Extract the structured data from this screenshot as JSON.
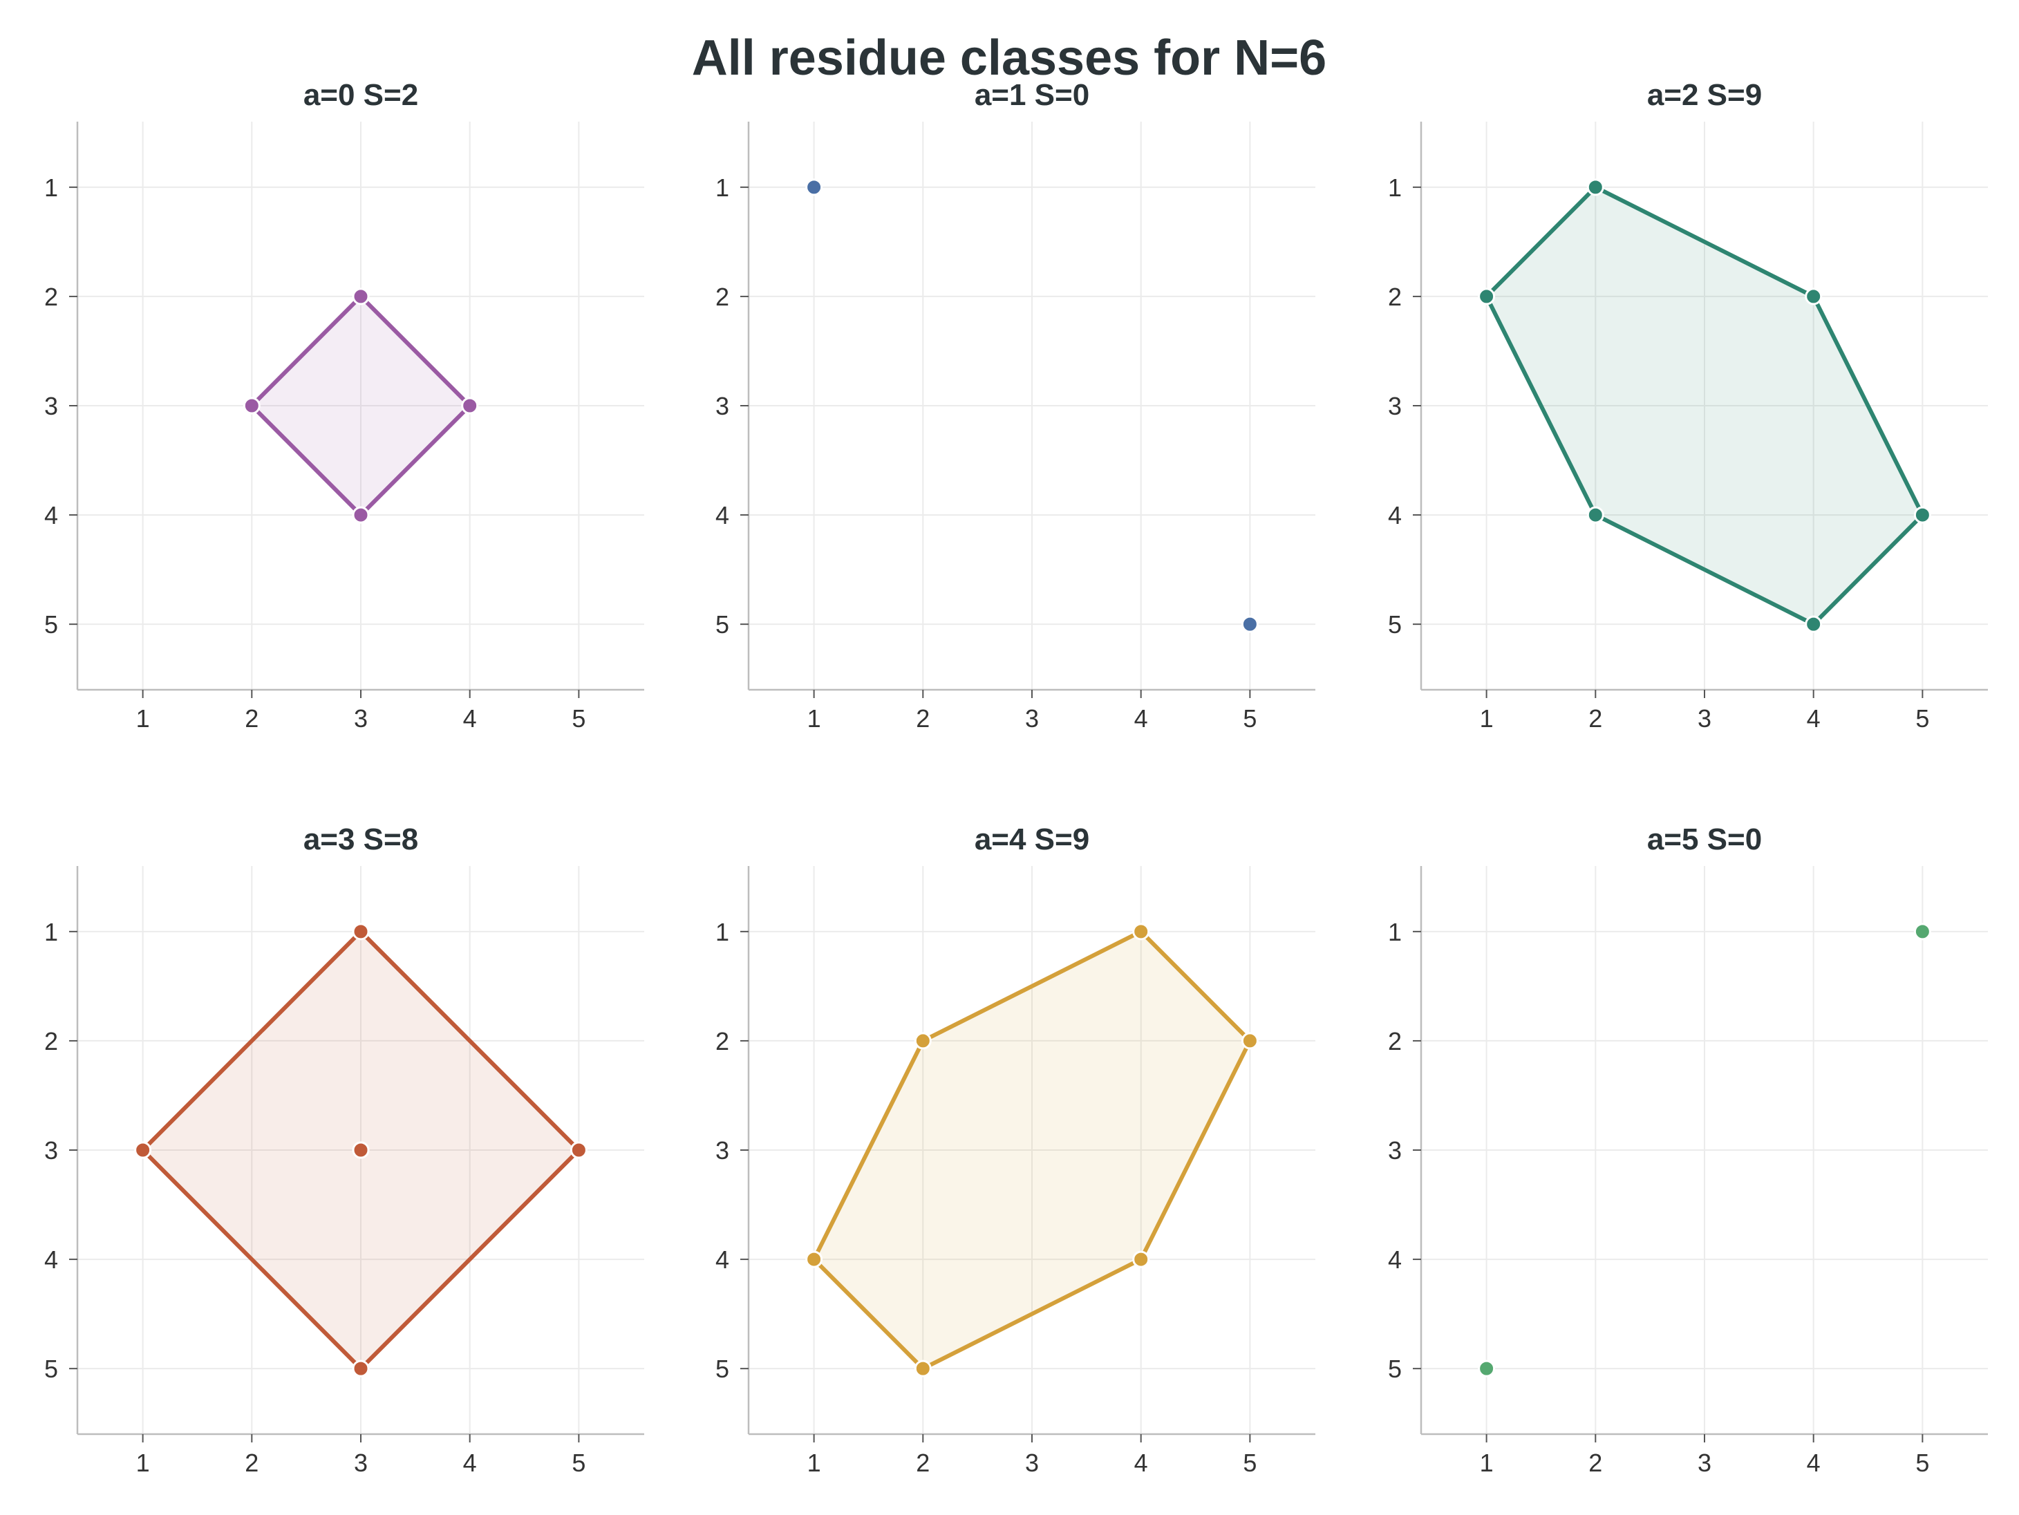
{
  "figure": {
    "title": "All residue classes for N=6"
  },
  "colors": {
    "grid": "#ebebeb",
    "spine": "#bdbdbd",
    "text": "#2b3438"
  },
  "chart_data": [
    {
      "type": "scatter",
      "title": "a=0   S=2",
      "color": "#9a5aa3",
      "hull": true,
      "xlim": [
        0.4,
        5.6
      ],
      "ylim": [
        5.6,
        0.4
      ],
      "y_inverted": true,
      "xticks": [
        "1",
        "2",
        "3",
        "4",
        "5"
      ],
      "yticks": [
        "1",
        "2",
        "3",
        "4",
        "5"
      ],
      "grid": true,
      "points": [
        [
          3,
          2
        ],
        [
          2,
          3
        ],
        [
          4,
          3
        ],
        [
          3,
          4
        ]
      ],
      "hull_order": [
        [
          3,
          2
        ],
        [
          4,
          3
        ],
        [
          3,
          4
        ],
        [
          2,
          3
        ]
      ]
    },
    {
      "type": "scatter",
      "title": "a=1   S=0",
      "color": "#4a6fa5",
      "hull": false,
      "xlim": [
        0.4,
        5.6
      ],
      "ylim": [
        5.6,
        0.4
      ],
      "y_inverted": true,
      "xticks": [
        "1",
        "2",
        "3",
        "4",
        "5"
      ],
      "yticks": [
        "1",
        "2",
        "3",
        "4",
        "5"
      ],
      "grid": true,
      "points": [
        [
          1,
          1
        ],
        [
          5,
          5
        ]
      ],
      "hull_order": []
    },
    {
      "type": "scatter",
      "title": "a=2   S=9",
      "color": "#2e8571",
      "hull": true,
      "xlim": [
        0.4,
        5.6
      ],
      "ylim": [
        5.6,
        0.4
      ],
      "y_inverted": true,
      "xticks": [
        "1",
        "2",
        "3",
        "4",
        "5"
      ],
      "yticks": [
        "1",
        "2",
        "3",
        "4",
        "5"
      ],
      "grid": true,
      "points": [
        [
          2,
          1
        ],
        [
          1,
          2
        ],
        [
          4,
          2
        ],
        [
          2,
          4
        ],
        [
          5,
          4
        ],
        [
          4,
          5
        ]
      ],
      "hull_order": [
        [
          2,
          1
        ],
        [
          4,
          2
        ],
        [
          5,
          4
        ],
        [
          4,
          5
        ],
        [
          2,
          4
        ],
        [
          1,
          2
        ]
      ]
    },
    {
      "type": "scatter",
      "title": "a=3   S=8",
      "color": "#c05a38",
      "hull": true,
      "xlim": [
        0.4,
        5.6
      ],
      "ylim": [
        5.6,
        0.4
      ],
      "y_inverted": true,
      "xticks": [
        "1",
        "2",
        "3",
        "4",
        "5"
      ],
      "yticks": [
        "1",
        "2",
        "3",
        "4",
        "5"
      ],
      "grid": true,
      "points": [
        [
          3,
          1
        ],
        [
          1,
          3
        ],
        [
          3,
          3
        ],
        [
          5,
          3
        ],
        [
          3,
          5
        ]
      ],
      "hull_order": [
        [
          3,
          1
        ],
        [
          5,
          3
        ],
        [
          3,
          5
        ],
        [
          1,
          3
        ]
      ]
    },
    {
      "type": "scatter",
      "title": "a=4   S=9",
      "color": "#d4a03a",
      "hull": true,
      "xlim": [
        0.4,
        5.6
      ],
      "ylim": [
        5.6,
        0.4
      ],
      "y_inverted": true,
      "xticks": [
        "1",
        "2",
        "3",
        "4",
        "5"
      ],
      "yticks": [
        "1",
        "2",
        "3",
        "4",
        "5"
      ],
      "grid": true,
      "points": [
        [
          4,
          1
        ],
        [
          2,
          2
        ],
        [
          5,
          2
        ],
        [
          1,
          4
        ],
        [
          4,
          4
        ],
        [
          2,
          5
        ]
      ],
      "hull_order": [
        [
          4,
          1
        ],
        [
          5,
          2
        ],
        [
          4,
          4
        ],
        [
          2,
          5
        ],
        [
          1,
          4
        ],
        [
          2,
          2
        ]
      ]
    },
    {
      "type": "scatter",
      "title": "a=5   S=0",
      "color": "#55a870",
      "hull": false,
      "xlim": [
        0.4,
        5.6
      ],
      "ylim": [
        5.6,
        0.4
      ],
      "y_inverted": true,
      "xticks": [
        "1",
        "2",
        "3",
        "4",
        "5"
      ],
      "yticks": [
        "1",
        "2",
        "3",
        "4",
        "5"
      ],
      "grid": true,
      "points": [
        [
          5,
          1
        ],
        [
          1,
          5
        ]
      ],
      "hull_order": []
    }
  ]
}
